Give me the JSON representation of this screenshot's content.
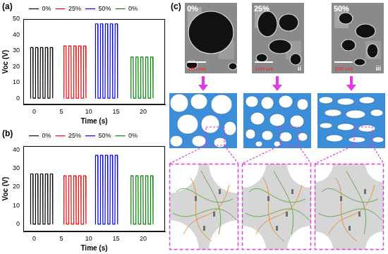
{
  "chart_data": [
    {
      "type": "line",
      "title": "(a)",
      "x_label": "Time (s)",
      "y_label": "Voc (V)",
      "xlim": [
        -2,
        24
      ],
      "xticks": [
        0,
        5,
        10,
        15,
        20
      ],
      "ylim": [
        -4,
        50
      ],
      "yticks": [
        0,
        10,
        20,
        30,
        40,
        50
      ],
      "grid": false,
      "legend": "top",
      "series": [
        {
          "name": "0%",
          "color": "#000000",
          "x": [
            -0.7,
            -0.65,
            -0.25,
            -0.2,
            0.2,
            0.25,
            0.65,
            0.7,
            1.1,
            1.15,
            1.55,
            1.6,
            2.0,
            2.05,
            2.45,
            2.5,
            2.9,
            2.95,
            3.35,
            3.4
          ],
          "values": [
            0,
            32,
            32,
            0,
            0,
            32,
            32,
            0,
            0,
            32,
            32,
            0,
            0,
            32,
            32,
            0,
            0,
            32,
            32,
            0
          ]
        },
        {
          "name": "25%",
          "color": "#ff0000",
          "x": [
            5.4,
            5.45,
            5.85,
            5.9,
            6.3,
            6.35,
            6.75,
            6.8,
            7.2,
            7.25,
            7.65,
            7.7,
            8.1,
            8.15,
            8.55,
            8.6,
            9.0,
            9.05,
            9.45,
            9.5
          ],
          "values": [
            0,
            33,
            33,
            0,
            0,
            33,
            33,
            0,
            0,
            33,
            33,
            0,
            0,
            33,
            33,
            0,
            0,
            33,
            33,
            0
          ]
        },
        {
          "name": "50%",
          "color": "#0000ff",
          "x": [
            11.2,
            11.25,
            11.65,
            11.7,
            12.1,
            12.15,
            12.55,
            12.6,
            13.0,
            13.05,
            13.45,
            13.5,
            13.9,
            13.95,
            14.35,
            14.4,
            14.8,
            14.85,
            15.25,
            15.3
          ],
          "values": [
            0,
            47,
            47,
            0,
            0,
            47,
            47,
            0,
            0,
            47,
            47,
            0,
            0,
            47,
            47,
            0,
            0,
            47,
            47,
            0
          ]
        },
        {
          "name": "0%",
          "color": "#008000",
          "x": [
            17.7,
            17.75,
            18.15,
            18.2,
            18.6,
            18.65,
            19.05,
            19.1,
            19.5,
            19.55,
            19.95,
            20.0,
            20.4,
            20.45,
            20.85,
            20.9,
            21.3,
            21.35,
            21.75,
            21.8
          ],
          "values": [
            0,
            26,
            26,
            0,
            0,
            26,
            26,
            0,
            0,
            26,
            26,
            0,
            0,
            26,
            26,
            0,
            0,
            26,
            26,
            0
          ]
        }
      ]
    },
    {
      "type": "line",
      "title": "(b)",
      "x_label": "Time (s)",
      "y_label": "Voc (V)",
      "xlim": [
        -2,
        24
      ],
      "xticks": [
        0,
        5,
        10,
        15,
        20
      ],
      "ylim": [
        -4,
        42
      ],
      "yticks": [
        0,
        10,
        20,
        30,
        40
      ],
      "grid": false,
      "legend": "top",
      "series": [
        {
          "name": "0%",
          "color": "#000000",
          "x": [
            -0.7,
            -0.65,
            -0.25,
            -0.2,
            0.2,
            0.25,
            0.65,
            0.7,
            1.1,
            1.15,
            1.55,
            1.6,
            2.0,
            2.05,
            2.45,
            2.5,
            2.9,
            2.95,
            3.35,
            3.4
          ],
          "values": [
            0,
            27,
            27,
            0,
            0,
            27,
            27,
            0,
            0,
            27,
            27,
            0,
            0,
            27,
            27,
            0,
            0,
            27,
            27,
            0
          ]
        },
        {
          "name": "25%",
          "color": "#ff0000",
          "x": [
            5.4,
            5.45,
            5.85,
            5.9,
            6.3,
            6.35,
            6.75,
            6.8,
            7.2,
            7.25,
            7.65,
            7.7,
            8.1,
            8.15,
            8.55,
            8.6,
            9.0,
            9.05,
            9.45,
            9.5
          ],
          "values": [
            0,
            26,
            26,
            0,
            0,
            26,
            26,
            0,
            0,
            26,
            26,
            0,
            0,
            26,
            26,
            0,
            0,
            26,
            26,
            0
          ]
        },
        {
          "name": "50%",
          "color": "#0000ff",
          "x": [
            11.2,
            11.25,
            11.65,
            11.7,
            12.1,
            12.15,
            12.55,
            12.6,
            13.0,
            13.05,
            13.45,
            13.5,
            13.9,
            13.95,
            14.35,
            14.4,
            14.8,
            14.85,
            15.25,
            15.3
          ],
          "values": [
            0,
            37,
            37,
            0,
            0,
            37,
            37,
            0,
            0,
            37,
            37,
            0,
            0,
            37,
            37,
            0,
            0,
            37,
            37,
            0
          ]
        },
        {
          "name": "0%",
          "color": "#008000",
          "x": [
            17.7,
            17.75,
            18.15,
            18.2,
            18.6,
            18.65,
            19.05,
            19.1,
            19.5,
            19.55,
            19.95,
            20.0,
            20.4,
            20.45,
            20.85,
            20.9,
            21.3,
            21.35,
            21.75,
            21.8
          ],
          "values": [
            0,
            26,
            26,
            0,
            0,
            26,
            26,
            0,
            0,
            26,
            26,
            0,
            0,
            26,
            26,
            0,
            0,
            26,
            26,
            0
          ]
        }
      ]
    }
  ],
  "panel_c": {
    "label": "(c)",
    "columns": [
      {
        "percent": "0%",
        "scale_bar": "100 um"
      },
      {
        "percent": "25%",
        "scale_bar": "100 um",
        "numeral": "ii"
      },
      {
        "percent": "50%",
        "scale_bar": "100 um",
        "numeral": "iii"
      }
    ]
  }
}
